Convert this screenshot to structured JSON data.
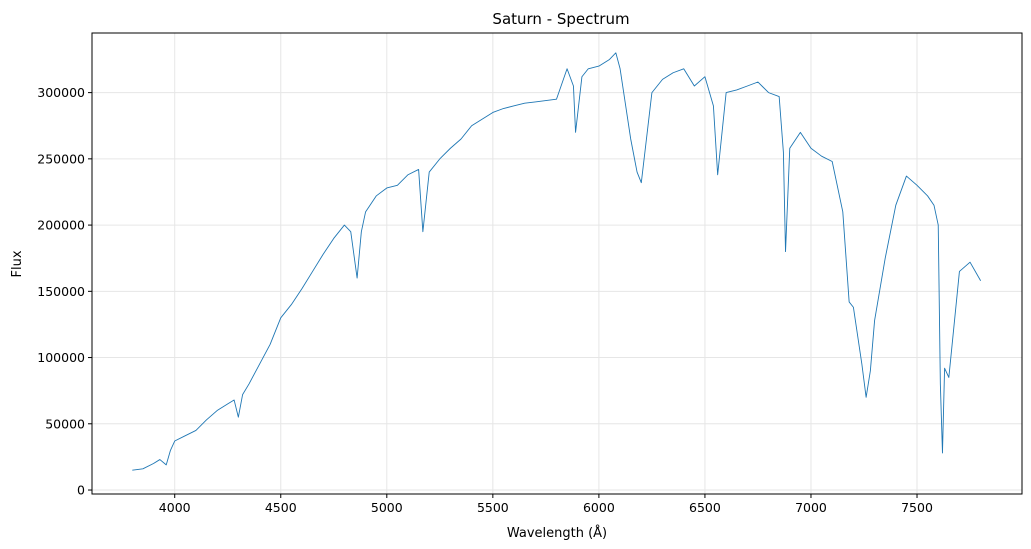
{
  "chart_data": {
    "type": "line",
    "title": "Saturn - Spectrum",
    "xlabel": "Wavelength (Å)",
    "ylabel": "Flux",
    "xlim": [
      3610,
      7995
    ],
    "ylim": [
      -3000,
      345000
    ],
    "grid": true,
    "xticks": [
      4000,
      4500,
      5000,
      5500,
      6000,
      6500,
      7000,
      7500
    ],
    "xtick_labels": [
      "4000",
      "4500",
      "5000",
      "5500",
      "6000",
      "6500",
      "7000",
      "7500"
    ],
    "yticks": [
      0,
      50000,
      100000,
      150000,
      200000,
      250000,
      300000
    ],
    "ytick_labels": [
      "0",
      "50000",
      "100000",
      "150000",
      "200000",
      "250000",
      "300000"
    ],
    "colors": {
      "line": "#1f77b4",
      "grid": "#e6e6e6",
      "axes": "#000000"
    },
    "series": [
      {
        "x": [
          3800,
          3850,
          3900,
          3930,
          3960,
          3980,
          4000,
          4050,
          4100,
          4150,
          4200,
          4250,
          4280,
          4300,
          4320,
          4350,
          4400,
          4450,
          4500,
          4550,
          4600,
          4650,
          4700,
          4750,
          4800,
          4830,
          4860,
          4880,
          4900,
          4950,
          5000,
          5050,
          5100,
          5150,
          5170,
          5200,
          5250,
          5300,
          5350,
          5400,
          5450,
          5500,
          5550,
          5600,
          5650,
          5700,
          5750,
          5800,
          5850,
          5880,
          5890,
          5920,
          5950,
          6000,
          6050,
          6080,
          6100,
          6150,
          6180,
          6200,
          6250,
          6300,
          6350,
          6400,
          6450,
          6500,
          6540,
          6560,
          6600,
          6650,
          6700,
          6750,
          6800,
          6850,
          6870,
          6880,
          6900,
          6950,
          7000,
          7050,
          7100,
          7150,
          7180,
          7200,
          7240,
          7260,
          7280,
          7300,
          7350,
          7400,
          7450,
          7500,
          7550,
          7580,
          7600,
          7610,
          7620,
          7630,
          7650,
          7700,
          7750,
          7800
        ],
        "y": [
          15000,
          16000,
          20000,
          23000,
          19000,
          30000,
          37000,
          41000,
          45000,
          53000,
          60000,
          65000,
          68000,
          55000,
          72000,
          80000,
          95000,
          110000,
          130000,
          140000,
          152000,
          165000,
          178000,
          190000,
          200000,
          195000,
          160000,
          195000,
          210000,
          222000,
          228000,
          230000,
          238000,
          242000,
          195000,
          240000,
          250000,
          258000,
          265000,
          275000,
          280000,
          285000,
          288000,
          290000,
          292000,
          293000,
          294000,
          295000,
          318000,
          305000,
          270000,
          312000,
          318000,
          320000,
          325000,
          330000,
          318000,
          265000,
          240000,
          232000,
          300000,
          310000,
          315000,
          318000,
          305000,
          312000,
          290000,
          238000,
          300000,
          302000,
          305000,
          308000,
          300000,
          297000,
          255000,
          180000,
          258000,
          270000,
          258000,
          252000,
          248000,
          210000,
          142000,
          138000,
          95000,
          70000,
          90000,
          128000,
          175000,
          215000,
          237000,
          230000,
          222000,
          215000,
          200000,
          80000,
          28000,
          92000,
          85000,
          165000,
          172000,
          158000
        ]
      }
    ]
  }
}
